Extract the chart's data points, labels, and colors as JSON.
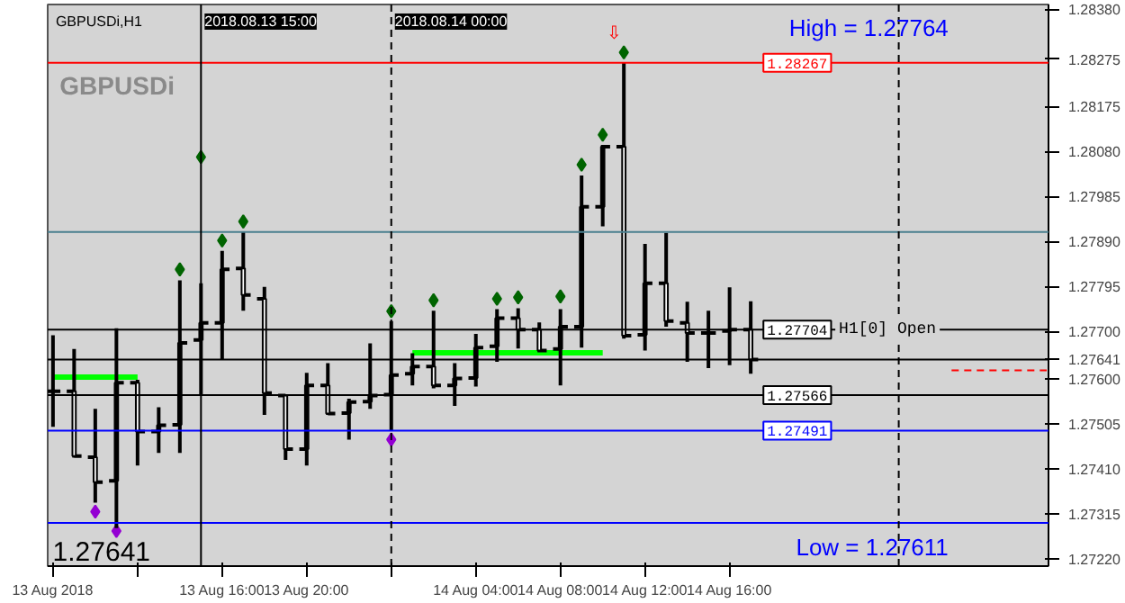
{
  "chart_data": {
    "type": "candlestick",
    "title": "GBPUSDi,H1",
    "x": [
      "2018-08-13T08:00",
      "2018-08-13T09:00",
      "2018-08-13T10:00",
      "2018-08-13T11:00",
      "2018-08-13T12:00",
      "2018-08-13T13:00",
      "2018-08-13T14:00",
      "2018-08-13T15:00",
      "2018-08-13T16:00",
      "2018-08-13T17:00",
      "2018-08-13T18:00",
      "2018-08-13T19:00",
      "2018-08-13T20:00",
      "2018-08-13T21:00",
      "2018-08-13T22:00",
      "2018-08-13T23:00",
      "2018-08-14T00:00",
      "2018-08-14T01:00",
      "2018-08-14T02:00",
      "2018-08-14T03:00",
      "2018-08-14T04:00",
      "2018-08-14T05:00",
      "2018-08-14T06:00",
      "2018-08-14T07:00",
      "2018-08-14T08:00",
      "2018-08-14T09:00",
      "2018-08-14T10:00",
      "2018-08-14T11:00",
      "2018-08-14T12:00",
      "2018-08-14T13:00",
      "2018-08-14T14:00",
      "2018-08-14T15:00",
      "2018-08-14T16:00",
      "2018-08-14T17:00"
    ],
    "ohlc": [
      [
        1.27574,
        1.27692,
        1.27499,
        1.27574
      ],
      [
        1.27574,
        1.27663,
        1.27434,
        1.27437
      ],
      [
        1.27435,
        1.27537,
        1.27339,
        1.27382
      ],
      [
        1.27385,
        1.27707,
        1.27285,
        1.27592
      ],
      [
        1.27592,
        1.27598,
        1.27417,
        1.27489
      ],
      [
        1.27489,
        1.2754,
        1.27444,
        1.27502
      ],
      [
        1.27503,
        1.27808,
        1.27444,
        1.27676
      ],
      [
        1.27682,
        1.27802,
        1.27564,
        1.27718
      ],
      [
        1.27718,
        1.2787,
        1.27642,
        1.27831
      ],
      [
        1.27833,
        1.2791,
        1.27744,
        1.27777
      ],
      [
        1.27769,
        1.27794,
        1.27524,
        1.2757
      ],
      [
        1.27565,
        1.27567,
        1.27429,
        1.27452
      ],
      [
        1.27452,
        1.27613,
        1.27417,
        1.27586
      ],
      [
        1.27586,
        1.27633,
        1.27524,
        1.27527
      ],
      [
        1.27528,
        1.27558,
        1.27472,
        1.27551
      ],
      [
        1.27552,
        1.27675,
        1.27537,
        1.27565
      ],
      [
        1.27567,
        1.27722,
        1.27491,
        1.27608
      ],
      [
        1.27611,
        1.27654,
        1.27586,
        1.27626
      ],
      [
        1.27626,
        1.27744,
        1.2758,
        1.27586
      ],
      [
        1.27586,
        1.27633,
        1.27543,
        1.27601
      ],
      [
        1.27602,
        1.27695,
        1.27584,
        1.27666
      ],
      [
        1.27669,
        1.27747,
        1.27636,
        1.27728
      ],
      [
        1.27728,
        1.27749,
        1.27664,
        1.27704
      ],
      [
        1.27704,
        1.27719,
        1.27656,
        1.2766
      ],
      [
        1.27663,
        1.27747,
        1.27586,
        1.2771
      ],
      [
        1.2771,
        1.28029,
        1.27666,
        1.27963
      ],
      [
        1.27963,
        1.28093,
        1.27922,
        1.2809
      ],
      [
        1.2809,
        1.28267,
        1.27685,
        1.27691
      ],
      [
        1.27693,
        1.27885,
        1.2766,
        1.27802
      ],
      [
        1.27802,
        1.27908,
        1.2771,
        1.27722
      ],
      [
        1.27718,
        1.27763,
        1.27636,
        1.27697
      ],
      [
        1.27697,
        1.27744,
        1.27623,
        1.27697
      ],
      [
        1.27701,
        1.27793,
        1.27629,
        1.27704
      ],
      [
        1.27704,
        1.27764,
        1.27611,
        1.27641
      ]
    ],
    "color": "#000000",
    "series": [
      {
        "type": "scatter",
        "marker": "diamond",
        "color": "#006400",
        "x": [
          "2018-08-13T14:00",
          "2018-08-13T15:00",
          "2018-08-13T16:00",
          "2018-08-13T17:00",
          "2018-08-14T00:00",
          "2018-08-14T02:00",
          "2018-08-14T05:00",
          "2018-08-14T06:00",
          "2018-08-14T08:00",
          "2018-08-14T09:00",
          "2018-08-14T10:00",
          "2018-08-14T11:00"
        ],
        "values": [
          1.27831,
          1.28068,
          1.27892,
          1.27932,
          1.27743,
          1.27766,
          1.27769,
          1.27772,
          1.27774,
          1.28052,
          1.28115,
          1.28289
        ]
      },
      {
        "type": "scatter",
        "marker": "diamond",
        "color": "#9400d3",
        "x": [
          "2018-08-13T10:00",
          "2018-08-13T11:00",
          "2018-08-14T00:00"
        ],
        "values": [
          1.2732,
          1.27279,
          1.27472
        ]
      },
      {
        "type": "line",
        "color": "#00ff00",
        "x": [
          "2018-08-13T08:00",
          "2018-08-13T12:00"
        ],
        "values": [
          1.27604,
          1.27604
        ]
      },
      {
        "type": "line",
        "color": "#00ff00",
        "x": [
          "2018-08-14T01:00",
          "2018-08-14T10:00"
        ],
        "values": [
          1.27655,
          1.27655
        ]
      },
      {
        "type": "line",
        "color": "#ff0000",
        "line_style": "dashed",
        "x": [
          "2018-08-15T02:30",
          "2018-08-15T07:00"
        ],
        "values": [
          1.27618,
          1.27618
        ]
      }
    ],
    "ref_lines": [
      {
        "axis": "y",
        "value": 1.28267,
        "label": "1.28267",
        "color": "#ff0000"
      },
      {
        "axis": "y",
        "value": 1.2791,
        "color": "#4a7f8f"
      },
      {
        "axis": "y",
        "value": 1.27641,
        "color": "#000000"
      },
      {
        "axis": "y",
        "value": 1.27491,
        "label": "1.27491",
        "color": "#0000ff"
      },
      {
        "axis": "y",
        "value": 1.27296,
        "color": "#0000ff"
      },
      {
        "axis": "y",
        "value": 1.27704,
        "label": "1.27704",
        "color": "#000000"
      },
      {
        "axis": "y",
        "value": 1.27566,
        "label": "1.27566",
        "color": "#000000"
      },
      {
        "axis": "x",
        "value": "2018-08-13T15:00",
        "label": "2018.08.13 15:00",
        "color": "#000000"
      },
      {
        "axis": "x",
        "value": "2018-08-14T00:00",
        "label": "2018.08.14 00:00",
        "color": "#000000",
        "line_style": "dashed"
      },
      {
        "axis": "x",
        "value": "2018-08-15T00:00",
        "color": "#000000",
        "line_style": "dashed"
      }
    ],
    "annotations": [
      "GBPUSDi",
      "High = 1.27764",
      "Low = 1.27611",
      "1.27641",
      {
        "text": "H1[0] Open",
        "x": "2018-08-14T21:00",
        "y": 1.27704
      },
      "⇩"
    ],
    "xlim": [
      "2018-08-13T07:45",
      "2018-08-15T07:05"
    ],
    "xticks": [
      {
        "value": "2018-08-13T08:00",
        "label": "13 Aug 2018"
      },
      {
        "value": "2018-08-13T12:00",
        "label": null
      },
      {
        "value": "2018-08-13T16:00",
        "label": "13 Aug 16:00"
      },
      {
        "value": "2018-08-13T20:00",
        "label": "13 Aug 20:00"
      },
      {
        "value": "2018-08-14T00:00",
        "label": null
      },
      {
        "value": "2018-08-14T04:00",
        "label": "14 Aug 04:00"
      },
      {
        "value": "2018-08-14T08:00",
        "label": "14 Aug 08:00"
      },
      {
        "value": "2018-08-14T12:00",
        "label": "14 Aug 12:00"
      },
      {
        "value": "2018-08-14T16:00",
        "label": "14 Aug 16:00"
      }
    ],
    "ylim": [
      1.27205,
      1.2839
    ],
    "yticks": [
      {
        "value": 1.2838,
        "label": "1.28380"
      },
      1.28275,
      1.28175,
      {
        "value": 1.2808,
        "label": "1.28080"
      },
      1.27985,
      {
        "value": 1.2789,
        "label": "1.27890"
      },
      1.27795,
      {
        "value": 1.277,
        "label": "1.27700"
      },
      1.27641,
      {
        "value": 1.276,
        "label": "1.27600"
      },
      1.27505,
      {
        "value": 1.2741,
        "label": "1.27410"
      },
      1.27315,
      {
        "value": 1.2722,
        "label": "1.27220"
      }
    ],
    "grid": false
  }
}
